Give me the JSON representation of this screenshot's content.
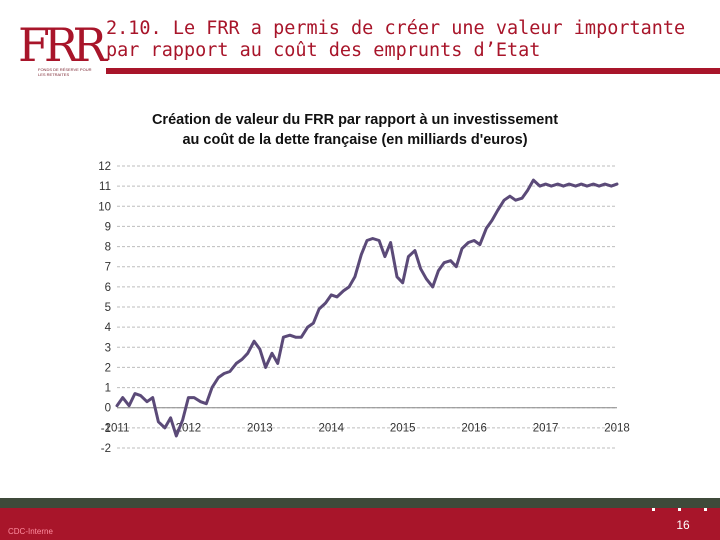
{
  "logo": {
    "monogram": "FRR",
    "tagline": "FONDS DE RÉSERVE POUR LES RETRAITES"
  },
  "slide": {
    "title": "2.10. Le FRR a permis de créer une valeur importante par rapport au coût des emprunts d’Etat"
  },
  "footer": {
    "label": "CDC-Interne",
    "page_number": "16"
  },
  "colors": {
    "brand": "#a8152a",
    "series": "#5b4a78",
    "grid": "#bdbdbd",
    "footer_stripe": "#3f4a3a"
  },
  "chart_data": {
    "type": "line",
    "title": "Création de valeur du FRR par rapport à un investissement au coût de la dette française (en milliards d'euros)",
    "title_lines": [
      "Création de valeur du FRR par rapport à un investissement",
      "au coût de la dette française (en milliards d'euros)"
    ],
    "xlabel": "",
    "ylabel": "",
    "xlim": [
      2011,
      2018
    ],
    "ylim": [
      -2,
      12
    ],
    "y_ticks": [
      -2,
      -1,
      0,
      1,
      2,
      3,
      4,
      5,
      6,
      7,
      8,
      9,
      10,
      11,
      12
    ],
    "x_ticks": [
      "2011",
      "2012",
      "2013",
      "2014",
      "2015",
      "2016",
      "2017",
      "2018"
    ],
    "grid": true,
    "series": [
      {
        "name": "Création de valeur du FRR",
        "x": [
          2011.0,
          2011.08,
          2011.17,
          2011.25,
          2011.33,
          2011.42,
          2011.5,
          2011.58,
          2011.67,
          2011.75,
          2011.83,
          2011.92,
          2012.0,
          2012.08,
          2012.17,
          2012.25,
          2012.33,
          2012.42,
          2012.5,
          2012.58,
          2012.67,
          2012.75,
          2012.83,
          2012.92,
          2013.0,
          2013.08,
          2013.17,
          2013.25,
          2013.33,
          2013.42,
          2013.5,
          2013.58,
          2013.67,
          2013.75,
          2013.83,
          2013.92,
          2014.0,
          2014.08,
          2014.17,
          2014.25,
          2014.33,
          2014.42,
          2014.5,
          2014.58,
          2014.67,
          2014.75,
          2014.83,
          2014.92,
          2015.0,
          2015.08,
          2015.17,
          2015.25,
          2015.33,
          2015.42,
          2015.5,
          2015.58,
          2015.67,
          2015.75,
          2015.83,
          2015.92,
          2016.0,
          2016.08,
          2016.17,
          2016.25,
          2016.33,
          2016.42,
          2016.5,
          2016.58,
          2016.67,
          2016.75,
          2016.83,
          2016.92,
          2017.0,
          2017.08,
          2017.17,
          2017.25,
          2017.33,
          2017.42,
          2017.5,
          2017.58,
          2017.67,
          2017.75,
          2017.83,
          2017.92,
          2018.0
        ],
        "values": [
          0.1,
          0.5,
          0.1,
          0.7,
          0.6,
          0.3,
          0.5,
          -0.7,
          -1.0,
          -0.5,
          -1.4,
          -0.6,
          0.5,
          0.5,
          0.3,
          0.2,
          1.0,
          1.5,
          1.7,
          1.8,
          2.2,
          2.4,
          2.7,
          3.3,
          2.9,
          2.0,
          2.7,
          2.2,
          3.5,
          3.6,
          3.5,
          3.5,
          4.0,
          4.2,
          4.9,
          5.2,
          5.6,
          5.5,
          5.8,
          6.0,
          6.5,
          7.6,
          8.3,
          8.4,
          8.3,
          7.5,
          8.2,
          6.5,
          6.2,
          7.5,
          7.8,
          6.9,
          6.4,
          6.0,
          6.8,
          7.2,
          7.3,
          7.0,
          7.9,
          8.2,
          8.3,
          8.1,
          8.9,
          9.3,
          9.8,
          10.3,
          10.5,
          10.3,
          10.4,
          10.8,
          11.3,
          11.0,
          11.1,
          11.0,
          11.1,
          11.0,
          11.1,
          11.0,
          11.1,
          11.0,
          11.1,
          11.0,
          11.1,
          11.0,
          11.1
        ]
      }
    ]
  }
}
